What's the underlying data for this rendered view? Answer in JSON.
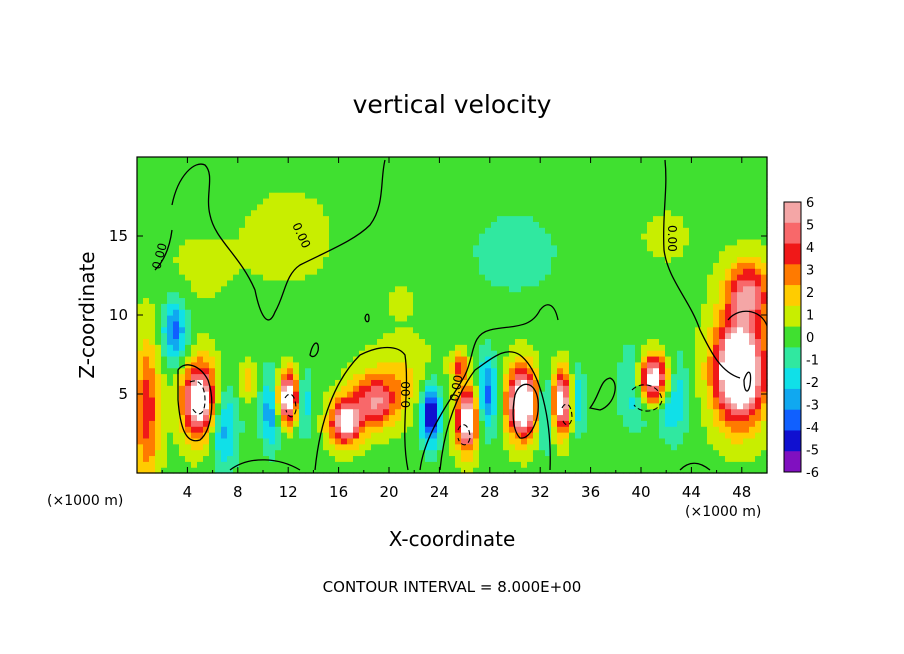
{
  "chart_data": {
    "type": "heatmap",
    "title": "vertical velocity",
    "xlabel": "X-coordinate",
    "ylabel": "Z-coordinate",
    "x_unit": "(×1000 m)",
    "xlim": [
      0,
      50
    ],
    "ylim": [
      0,
      20
    ],
    "x_ticks": [
      4,
      8,
      12,
      16,
      20,
      24,
      28,
      32,
      36,
      40,
      44,
      48
    ],
    "y_ticks": [
      5,
      10,
      15
    ],
    "colorbar": {
      "levels": [
        6,
        5,
        4,
        3,
        2,
        1,
        0,
        -1,
        -2,
        -3,
        -4,
        -5,
        -6
      ],
      "colors": [
        "#f4a6a6",
        "#f8686a",
        "#f01818",
        "#ff7a00",
        "#ffcc00",
        "#c8ee00",
        "#40e030",
        "#30e8a0",
        "#10e0e8",
        "#10a8f0",
        "#1060ff",
        "#1010d0",
        "#8010c0"
      ]
    },
    "contour_label": "0.00",
    "annotation": "CONTOUR INTERVAL = 8.000E+00",
    "cells": [
      {
        "x": 0.8,
        "z": 4.0,
        "sx": 1.0,
        "sz": 4.5,
        "w": 4.0
      },
      {
        "x": 5.0,
        "z": 4.6,
        "sx": 1.4,
        "sz": 2.4,
        "w": 8.0
      },
      {
        "x": 3.0,
        "z": 9.0,
        "sx": 1.0,
        "sz": 2.0,
        "w": -4.0
      },
      {
        "x": 6.8,
        "z": 3.0,
        "sx": 1.2,
        "sz": 2.6,
        "w": -3.5
      },
      {
        "x": 8.8,
        "z": 5.8,
        "sx": 0.8,
        "sz": 1.2,
        "w": 2.0
      },
      {
        "x": 12.0,
        "z": 4.8,
        "sx": 0.9,
        "sz": 1.6,
        "w": 8.0
      },
      {
        "x": 10.6,
        "z": 4.0,
        "sx": 0.8,
        "sz": 2.5,
        "w": -3.5
      },
      {
        "x": 13.2,
        "z": 4.5,
        "sx": 0.7,
        "sz": 2.0,
        "w": -3.0
      },
      {
        "x": 16.5,
        "z": 3.2,
        "sx": 1.2,
        "sz": 1.4,
        "w": 7.0
      },
      {
        "x": 18.8,
        "z": 4.5,
        "sx": 1.8,
        "sz": 1.6,
        "w": 5.0
      },
      {
        "x": 21.0,
        "z": 6.0,
        "sx": 3.0,
        "sz": 2.2,
        "w": 1.5
      },
      {
        "x": 23.3,
        "z": 3.8,
        "sx": 0.8,
        "sz": 2.0,
        "w": -6.0
      },
      {
        "x": 26.2,
        "z": 3.4,
        "sx": 0.9,
        "sz": 2.0,
        "w": 7.5
      },
      {
        "x": 25.6,
        "z": 6.8,
        "sx": 0.6,
        "sz": 0.8,
        "w": 4.0
      },
      {
        "x": 27.8,
        "z": 5.0,
        "sx": 0.8,
        "sz": 2.5,
        "w": -4.0
      },
      {
        "x": 30.6,
        "z": 4.5,
        "sx": 1.2,
        "sz": 2.2,
        "w": 9.0
      },
      {
        "x": 33.7,
        "z": 4.5,
        "sx": 0.8,
        "sz": 2.0,
        "w": 7.0
      },
      {
        "x": 32.4,
        "z": 4.0,
        "sx": 0.6,
        "sz": 2.4,
        "w": -3.5
      },
      {
        "x": 35.0,
        "z": 4.6,
        "sx": 0.6,
        "sz": 2.0,
        "w": -3.0
      },
      {
        "x": 41.0,
        "z": 6.0,
        "sx": 1.4,
        "sz": 1.6,
        "w": 8.0
      },
      {
        "x": 42.5,
        "z": 5.0,
        "sx": 1.2,
        "sz": 2.6,
        "w": -3.5
      },
      {
        "x": 39.5,
        "z": 5.5,
        "sx": 1.2,
        "sz": 2.5,
        "w": -3.0
      },
      {
        "x": 47.8,
        "z": 6.5,
        "sx": 2.0,
        "sz": 3.2,
        "w": 10.0
      },
      {
        "x": 48.5,
        "z": 11.5,
        "sx": 1.8,
        "sz": 2.0,
        "w": 5.0
      },
      {
        "x": 12.0,
        "z": 15.0,
        "sx": 3.5,
        "sz": 3.0,
        "w": 0.9
      },
      {
        "x": 5.0,
        "z": 13.0,
        "sx": 3.0,
        "sz": 2.5,
        "w": 0.6
      },
      {
        "x": 30.0,
        "z": 14.0,
        "sx": 4.0,
        "sz": 3.0,
        "w": -1.2
      },
      {
        "x": 42.0,
        "z": 15.0,
        "sx": 3.0,
        "sz": 2.5,
        "w": 0.5
      },
      {
        "x": 21.0,
        "z": 11.0,
        "sx": 3.0,
        "sz": 2.0,
        "w": 0.4
      }
    ]
  }
}
